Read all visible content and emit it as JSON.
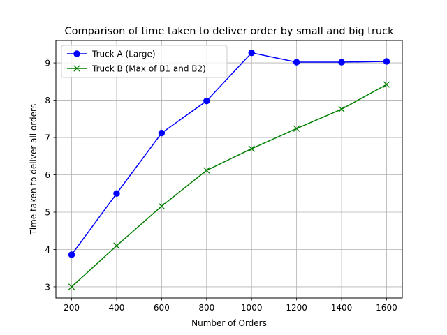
{
  "chart_data": {
    "type": "line",
    "title": "Comparison of time taken to deliver order by small and big truck",
    "xlabel": "Number of Orders",
    "ylabel": "Time taken to deliver all orders",
    "xlim": [
      130,
      1670
    ],
    "ylim": [
      2.7,
      9.6
    ],
    "xticks": [
      200,
      400,
      600,
      800,
      1000,
      1200,
      1400,
      1600
    ],
    "yticks": [
      3,
      4,
      5,
      6,
      7,
      8,
      9
    ],
    "grid": true,
    "legend_position": "upper-left",
    "x": [
      200,
      400,
      600,
      800,
      1000,
      1200,
      1400,
      1600
    ],
    "series": [
      {
        "name": "Truck A (Large)",
        "values": [
          3.86,
          5.5,
          7.12,
          7.98,
          9.27,
          9.02,
          9.02,
          9.04
        ],
        "color": "#0000ff",
        "marker": "circle"
      },
      {
        "name": "Truck B (Max of B1 and B2)",
        "values": [
          3.0,
          4.1,
          5.16,
          6.12,
          6.7,
          7.24,
          7.76,
          8.42
        ],
        "color": "#008000",
        "marker": "x"
      }
    ]
  }
}
